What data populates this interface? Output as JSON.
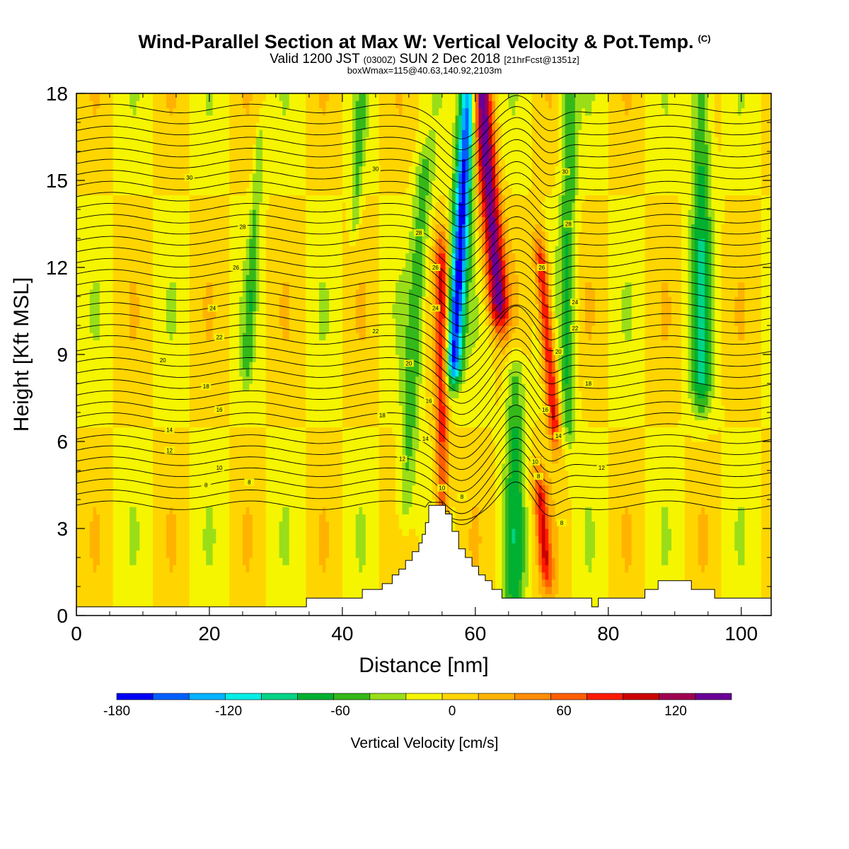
{
  "header": {
    "title": "Wind-Parallel Section at Max W: Vertical Velocity & Pot.Temp.",
    "copyright": "(C)",
    "valid_prefix": "Valid 1200 JST",
    "valid_z": "(0300Z)",
    "valid_date": "SUN 2 Dec 2018",
    "forecast": "[21hrFcst@1351z]",
    "box_info": "boxWmax=115@40.63,140.92,2103m"
  },
  "chart_data": {
    "type": "heatmap",
    "xlabel": "Distance [nm]",
    "ylabel": "Height [Kft MSL]",
    "xlim": [
      0,
      104.5
    ],
    "ylim": [
      0,
      18
    ],
    "xticks": [
      0,
      20,
      40,
      60,
      80,
      100
    ],
    "yticks": [
      0,
      3,
      6,
      9,
      12,
      15,
      18
    ],
    "colorbar": {
      "label": "Vertical Velocity [cm/s]",
      "range": [
        -180,
        150
      ],
      "step": 20,
      "ticks": [
        -180,
        -120,
        -60,
        0,
        60,
        120
      ],
      "colors": [
        "#0000f5",
        "#0060ff",
        "#00b2ff",
        "#00eee6",
        "#00d487",
        "#00b030",
        "#35b81a",
        "#9ade18",
        "#f5f500",
        "#ffd500",
        "#ffb300",
        "#ff8d00",
        "#ff5f00",
        "#ff1b00",
        "#cc0000",
        "#a00050",
        "#6a0096"
      ]
    },
    "terrain": [
      [
        0,
        0.3
      ],
      [
        34.6,
        0.3
      ],
      [
        34.6,
        0.6
      ],
      [
        40,
        0.6
      ],
      [
        40,
        0.6
      ],
      [
        43,
        0.6
      ],
      [
        43,
        0.9
      ],
      [
        46,
        0.9
      ],
      [
        46,
        1.1
      ],
      [
        47.5,
        1.1
      ],
      [
        47.5,
        1.4
      ],
      [
        48.5,
        1.4
      ],
      [
        48.5,
        1.6
      ],
      [
        49.5,
        1.6
      ],
      [
        49.5,
        1.9
      ],
      [
        50.5,
        1.9
      ],
      [
        50.5,
        2.2
      ],
      [
        51.5,
        2.2
      ],
      [
        51.5,
        2.5
      ],
      [
        52,
        2.5
      ],
      [
        52,
        2.8
      ],
      [
        52.5,
        2.8
      ],
      [
        52.5,
        3.2
      ],
      [
        53,
        3.2
      ],
      [
        53,
        3.8
      ],
      [
        55.5,
        3.8
      ],
      [
        55.5,
        3.5
      ],
      [
        56.5,
        3.5
      ],
      [
        56.5,
        2.9
      ],
      [
        57.5,
        2.9
      ],
      [
        57.5,
        2.3
      ],
      [
        58.5,
        2.3
      ],
      [
        58.5,
        2.0
      ],
      [
        59.5,
        2.0
      ],
      [
        59.5,
        1.7
      ],
      [
        60.5,
        1.7
      ],
      [
        60.5,
        1.4
      ],
      [
        61.5,
        1.4
      ],
      [
        61.5,
        1.2
      ],
      [
        62.5,
        1.2
      ],
      [
        62.5,
        0.9
      ],
      [
        64,
        0.9
      ],
      [
        64,
        0.6
      ],
      [
        72,
        0.6
      ],
      [
        72,
        0.6
      ],
      [
        77.5,
        0.6
      ],
      [
        77.5,
        0.3
      ],
      [
        78.5,
        0.3
      ],
      [
        78.5,
        0.6
      ],
      [
        85.5,
        0.6
      ],
      [
        85.5,
        0.9
      ],
      [
        87.5,
        0.9
      ],
      [
        87.5,
        1.2
      ],
      [
        92.5,
        1.2
      ],
      [
        92.5,
        0.9
      ],
      [
        96,
        0.9
      ],
      [
        96,
        0.6
      ],
      [
        104.5,
        0.6
      ]
    ],
    "field_features": [
      {
        "x": 57,
        "z0": 9,
        "z1": 18,
        "w": -170,
        "width": 1.3
      },
      {
        "x": 63,
        "z0": 11,
        "z1": 18,
        "w": 150,
        "width": 1.5
      },
      {
        "x": 55,
        "z0": 4,
        "z1": 12,
        "w": 90,
        "width": 1.0
      },
      {
        "x": 70,
        "z0": 7,
        "z1": 12,
        "w": 110,
        "width": 1.0
      },
      {
        "x": 67,
        "z0": 2,
        "z1": 4,
        "w": 90,
        "width": 1.0
      },
      {
        "x": 74,
        "z0": 7,
        "z1": 18,
        "w": -60,
        "width": 1.2
      },
      {
        "x": 51,
        "z0": 4,
        "z1": 15,
        "w": -50,
        "width": 1.4
      },
      {
        "x": 94,
        "z0": 8,
        "z1": 18,
        "w": -70,
        "width": 1.5
      },
      {
        "x": 66,
        "z0": 0.5,
        "z1": 8,
        "w": -60,
        "width": 1.4
      },
      {
        "x": 26,
        "z0": 9,
        "z1": 16,
        "w": -40,
        "width": 0.8
      },
      {
        "x": 41,
        "z0": 14,
        "z1": 18,
        "w": -40,
        "width": 0.8
      }
    ],
    "theta_labels": [
      {
        "value": "30",
        "x": 17,
        "z": 15.1
      },
      {
        "value": "30",
        "x": 45,
        "z": 15.4
      },
      {
        "value": "30",
        "x": 73.5,
        "z": 15.3
      },
      {
        "value": "28",
        "x": 25,
        "z": 13.4
      },
      {
        "value": "28",
        "x": 51.5,
        "z": 13.2
      },
      {
        "value": "28",
        "x": 74,
        "z": 13.5
      },
      {
        "value": "26",
        "x": 24,
        "z": 12.0
      },
      {
        "value": "26",
        "x": 54,
        "z": 12.0
      },
      {
        "value": "26",
        "x": 70,
        "z": 12.0
      },
      {
        "value": "24",
        "x": 20.5,
        "z": 10.6
      },
      {
        "value": "24",
        "x": 54,
        "z": 10.6
      },
      {
        "value": "24",
        "x": 75,
        "z": 10.8
      },
      {
        "value": "22",
        "x": 21.5,
        "z": 9.6
      },
      {
        "value": "22",
        "x": 45,
        "z": 9.8
      },
      {
        "value": "22",
        "x": 75,
        "z": 9.9
      },
      {
        "value": "20",
        "x": 13,
        "z": 8.8
      },
      {
        "value": "20",
        "x": 50,
        "z": 8.7
      },
      {
        "value": "20",
        "x": 72.5,
        "z": 9.1
      },
      {
        "value": "18",
        "x": 19.5,
        "z": 7.9
      },
      {
        "value": "18",
        "x": 46,
        "z": 6.9
      },
      {
        "value": "18",
        "x": 77,
        "z": 8.0
      },
      {
        "value": "16",
        "x": 21.5,
        "z": 7.1
      },
      {
        "value": "16",
        "x": 53,
        "z": 7.4
      },
      {
        "value": "16",
        "x": 70.5,
        "z": 7.1
      },
      {
        "value": "14",
        "x": 14,
        "z": 6.4
      },
      {
        "value": "14",
        "x": 52.5,
        "z": 6.1
      },
      {
        "value": "14",
        "x": 72.5,
        "z": 6.2
      },
      {
        "value": "12",
        "x": 14,
        "z": 5.7
      },
      {
        "value": "12",
        "x": 49,
        "z": 5.4
      },
      {
        "value": "12",
        "x": 79,
        "z": 5.1
      },
      {
        "value": "10",
        "x": 21.5,
        "z": 5.1
      },
      {
        "value": "10",
        "x": 69,
        "z": 5.3
      },
      {
        "value": "10",
        "x": 55,
        "z": 4.4
      },
      {
        "value": "8",
        "x": 19.5,
        "z": 4.5
      },
      {
        "value": "8",
        "x": 26,
        "z": 4.6
      },
      {
        "value": "8",
        "x": 58,
        "z": 4.1
      },
      {
        "value": "8",
        "x": 69.5,
        "z": 4.8
      },
      {
        "value": "8",
        "x": 73,
        "z": 3.2
      }
    ]
  }
}
